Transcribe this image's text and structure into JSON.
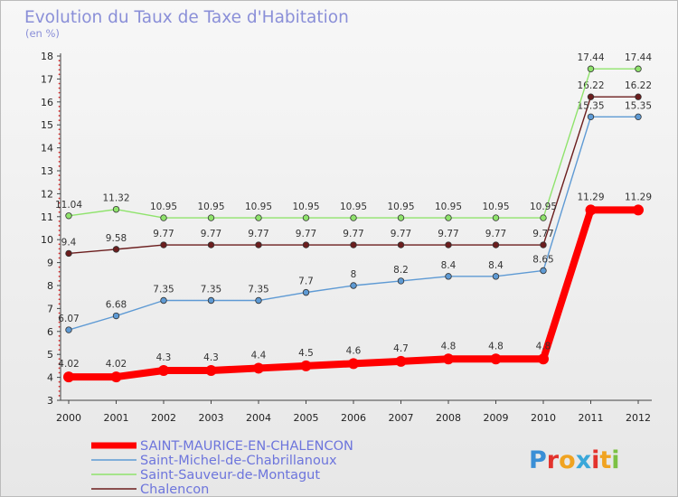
{
  "title": "Evolution du Taux de Taxe d'Habitation",
  "subtitle": "(en %)",
  "logo": {
    "text": "Proxiti",
    "colors": [
      "#3a8fd6",
      "#e3322c",
      "#f0a321",
      "#3aa7d9",
      "#e3322c",
      "#f0a321",
      "#7cc144"
    ]
  },
  "chart_data": {
    "type": "line",
    "x": [
      "2000",
      "2001",
      "2002",
      "2003",
      "2004",
      "2005",
      "2006",
      "2007",
      "2008",
      "2009",
      "2010",
      "2011",
      "2012"
    ],
    "ylim": [
      3,
      18
    ],
    "yticks": [
      3,
      4,
      5,
      6,
      7,
      8,
      9,
      10,
      11,
      12,
      13,
      14,
      15,
      16,
      17,
      18
    ],
    "grid": false,
    "legend_position": "bottom-left",
    "series": [
      {
        "name": "Chalencon",
        "color": "#6b1d1d",
        "values": [
          9.4,
          9.58,
          9.77,
          9.77,
          9.77,
          9.77,
          9.77,
          9.77,
          9.77,
          9.77,
          9.77,
          16.22,
          16.22
        ],
        "labels": [
          "9.4",
          "9.58",
          "9.77",
          "9.77",
          "9.77",
          "9.77",
          "9.77",
          "9.77",
          "9.77",
          "9.77",
          "9.77",
          "16.22",
          "16.22"
        ]
      },
      {
        "name": "Saint-Michel-de-Chabrillanoux",
        "color": "#5e9ad4",
        "values": [
          6.07,
          6.68,
          7.35,
          7.35,
          7.35,
          7.7,
          8,
          8.2,
          8.4,
          8.4,
          8.65,
          15.35,
          15.35
        ],
        "labels": [
          "6.07",
          "6.68",
          "7.35",
          "7.35",
          "7.35",
          "7.7",
          "8",
          "8.2",
          "8.4",
          "8.4",
          "8.65",
          "15.35",
          "15.35"
        ]
      },
      {
        "name": "Saint-Sauveur-de-Montagut",
        "color": "#8fe36c",
        "values": [
          11.04,
          11.32,
          10.95,
          10.95,
          10.95,
          10.95,
          10.95,
          10.95,
          10.95,
          10.95,
          10.95,
          17.44,
          17.44
        ],
        "labels": [
          "11.04",
          "11.32",
          "10.95",
          "10.95",
          "10.95",
          "10.95",
          "10.95",
          "10.95",
          "10.95",
          "10.95",
          "10.95",
          "17.44",
          "17.44"
        ]
      },
      {
        "name": "SAINT-MAURICE-EN-CHALENCON",
        "color": "#ff0000",
        "values": [
          4.02,
          4.02,
          4.3,
          4.3,
          4.4,
          4.5,
          4.6,
          4.7,
          4.8,
          4.8,
          4.8,
          11.29,
          11.29
        ],
        "labels": [
          "4.02",
          "4.02",
          "4.3",
          "4.3",
          "4.4",
          "4.5",
          "4.6",
          "4.7",
          "4.8",
          "4.8",
          "4.8",
          "11.29",
          "11.29"
        ]
      }
    ],
    "legend": [
      {
        "name": "SAINT-MAURICE-EN-CHALENCON",
        "color": "#ff0000"
      },
      {
        "name": "Saint-Michel-de-Chabrillanoux",
        "color": "#5e9ad4"
      },
      {
        "name": "Saint-Sauveur-de-Montagut",
        "color": "#8fe36c"
      },
      {
        "name": "Chalencon",
        "color": "#6b1d1d"
      }
    ]
  }
}
